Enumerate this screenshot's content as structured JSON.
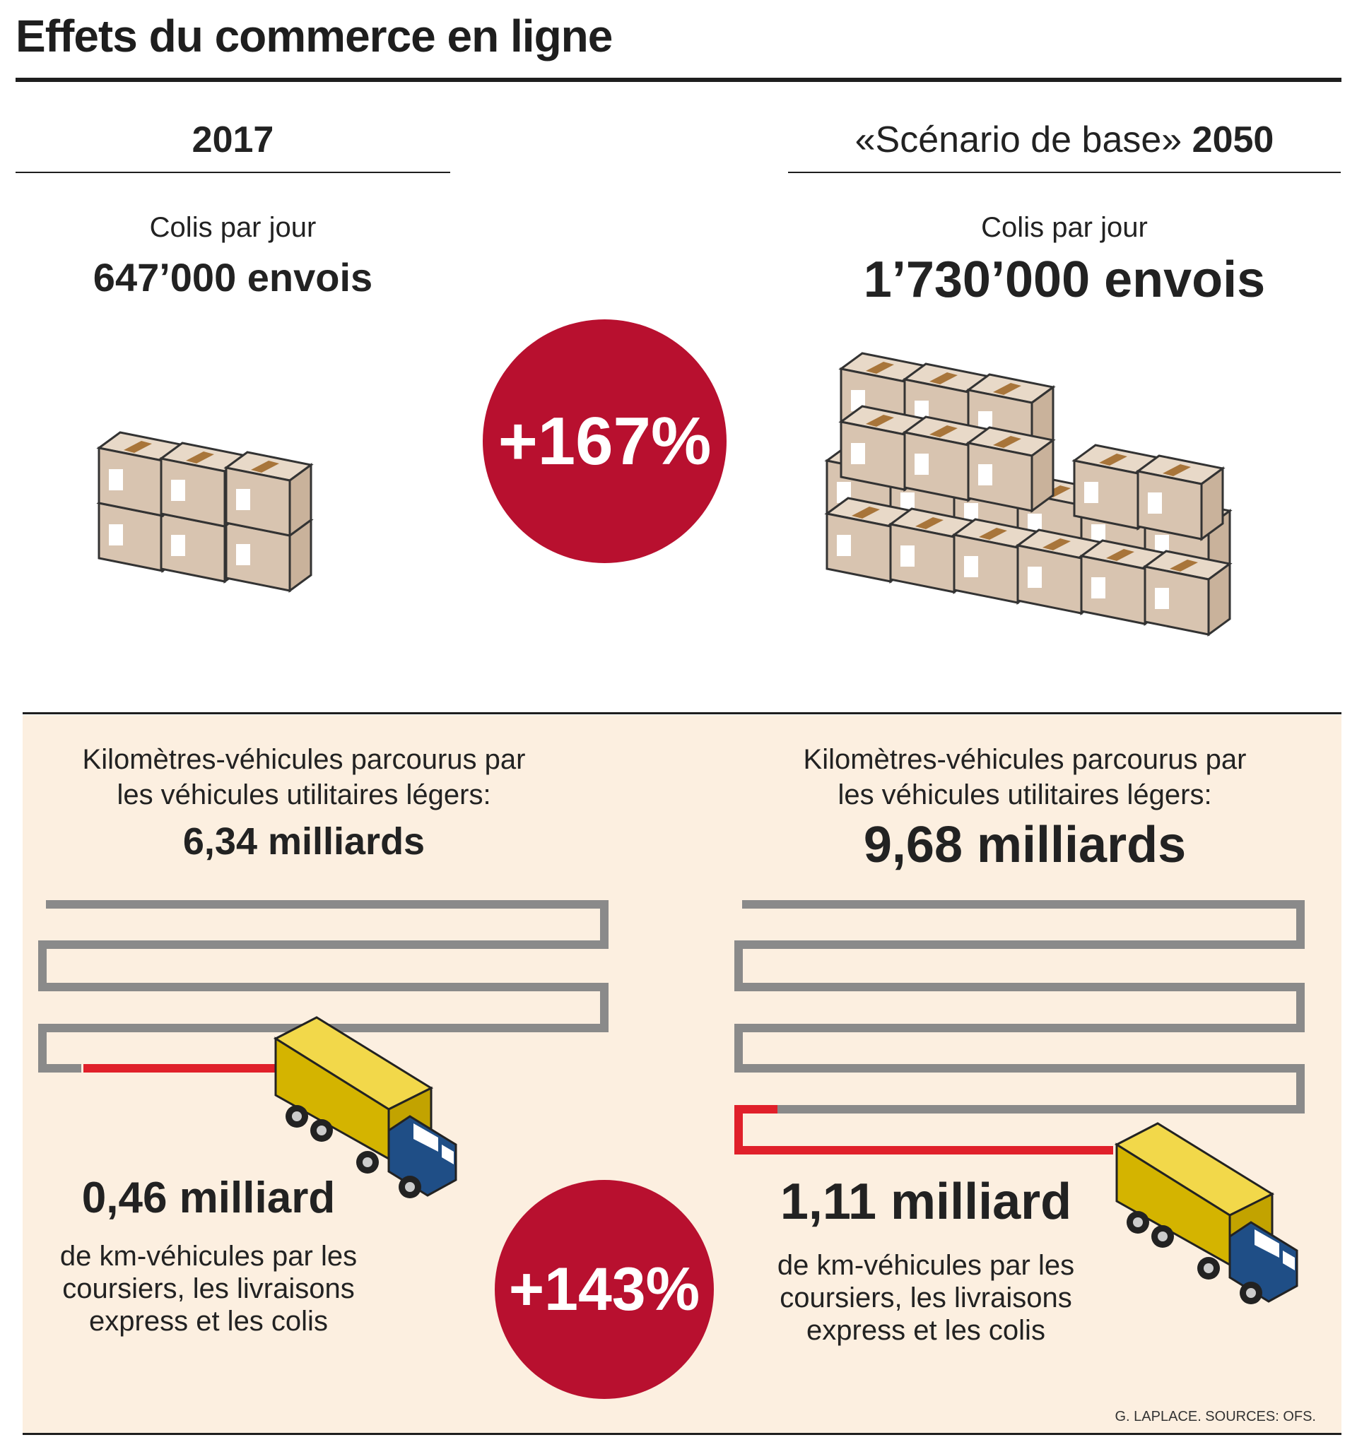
{
  "title": "Effets du commerce en ligne",
  "left_column": {
    "year": "2017",
    "colis_label": "Colis par jour",
    "colis_value": "647’000 envois"
  },
  "right_column": {
    "scenario": "«Scénario de base»",
    "year": "2050",
    "colis_label": "Colis par jour",
    "colis_value": "1’730’000 envois"
  },
  "colis_change": "+167%",
  "km_section": {
    "left": {
      "label_line1": "Kilomètres-véhicules parcourus par",
      "label_line2": "les véhicules utilitaires légers:",
      "total": "6,34 milliards",
      "delivery_value": "0,46 milliard",
      "desc_line1": "de km-véhicules par les",
      "desc_line2": "coursiers, les livraisons",
      "desc_line3": "express et les colis"
    },
    "right": {
      "label_line1": "Kilomètres-véhicules parcourus par",
      "label_line2": "les véhicules utilitaires légers:",
      "total": "9,68 milliards",
      "delivery_value": "1,11 milliard",
      "desc_line1": "de km-véhicules par les",
      "desc_line2": "coursiers, les livraisons",
      "desc_line3": "express et les colis"
    },
    "change": "+143%"
  },
  "source": "G. LAPLACE. SOURCES: OFS.",
  "colors": {
    "accent_red": "#b8102f",
    "panel_background": "#fcefe0",
    "road_grey": "#8a8a8a",
    "road_red": "#e0202a",
    "box_tan": "#d9c6b4",
    "tape_brown": "#a8753a",
    "truck_yellow": "#d4b400",
    "truck_blue": "#1f4e86"
  },
  "icons": [
    "parcel-boxes-icon",
    "delivery-truck-icon",
    "winding-road-icon"
  ]
}
